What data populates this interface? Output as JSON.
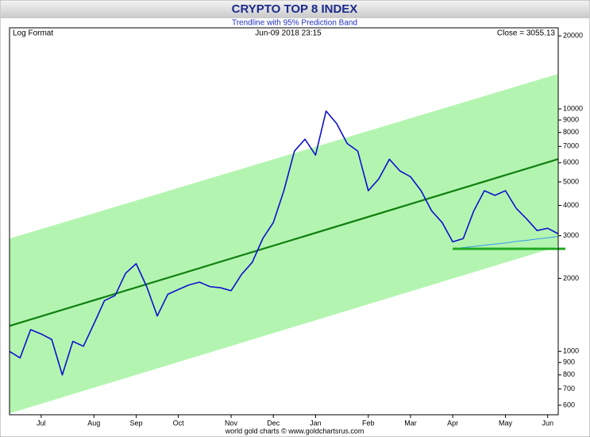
{
  "chart_data": {
    "type": "line",
    "title": "CRYPTO TOP 8 INDEX",
    "subtitle": "Trendline with 95% Prediction Band",
    "scale_note": "Log Format",
    "timestamp": "Jun-09  2018 23:15",
    "close_label": "Close = 3055.13",
    "footer": "world gold charts © www.goldchartsrus.com",
    "log_scale": true,
    "ylim": [
      548,
      21600
    ],
    "yticks": [
      600,
      700,
      800,
      900,
      1000,
      2000,
      3000,
      4000,
      5000,
      6000,
      7000,
      8000,
      9000,
      10000,
      20000
    ],
    "categories": [
      null,
      null,
      null,
      "Jul",
      null,
      null,
      null,
      null,
      "Aug",
      null,
      null,
      null,
      "Sep",
      null,
      null,
      null,
      "Oct",
      null,
      null,
      null,
      null,
      "Nov",
      null,
      null,
      null,
      "Dec",
      null,
      null,
      null,
      "Jan",
      null,
      null,
      null,
      null,
      "Feb",
      null,
      null,
      null,
      "Mar",
      null,
      null,
      null,
      "Apr",
      null,
      null,
      null,
      null,
      "May",
      null,
      null,
      null,
      "Jun",
      null
    ],
    "series": [
      {
        "name": "Crypto Top 8 Index",
        "color": "#1010d0",
        "width": 1.6,
        "values": [
          1000,
          940,
          1230,
          1180,
          1120,
          800,
          1100,
          1050,
          1300,
          1620,
          1700,
          2100,
          2300,
          1850,
          1400,
          1720,
          1800,
          1880,
          1930,
          1850,
          1830,
          1780,
          2080,
          2330,
          2920,
          3400,
          4600,
          6700,
          7500,
          6450,
          9800,
          8700,
          7200,
          6700,
          4600,
          5150,
          6200,
          5550,
          5250,
          4600,
          3800,
          3400,
          2830,
          2920,
          3800,
          4600,
          4400,
          4600,
          3900,
          3520,
          3150,
          3220,
          3055.13
        ]
      },
      {
        "name": "Support",
        "color": "#22aa22",
        "width": 3,
        "values": [
          null,
          null,
          null,
          null,
          null,
          null,
          null,
          null,
          null,
          null,
          null,
          null,
          null,
          null,
          null,
          null,
          null,
          null,
          null,
          null,
          null,
          null,
          null,
          null,
          null,
          null,
          null,
          null,
          null,
          null,
          null,
          null,
          null,
          null,
          null,
          null,
          null,
          null,
          null,
          null,
          null,
          null,
          2650,
          2650,
          2650,
          2650,
          2650,
          2650,
          2650,
          2650,
          2650,
          2650,
          2650
        ]
      },
      {
        "name": "Rising support",
        "color": "#3399ee",
        "width": 1,
        "values": [
          null,
          null,
          null,
          null,
          null,
          null,
          null,
          null,
          null,
          null,
          null,
          null,
          null,
          null,
          null,
          null,
          null,
          null,
          null,
          null,
          null,
          null,
          null,
          null,
          null,
          null,
          null,
          null,
          null,
          null,
          null,
          null,
          null,
          null,
          null,
          null,
          null,
          null,
          null,
          null,
          null,
          null,
          2650,
          2680,
          2710,
          2740,
          2770,
          2800,
          2840,
          2870,
          2910,
          2940,
          2980
        ]
      }
    ],
    "trend": {
      "color": "#0f7f0f",
      "values": [
        1274,
        6210
      ]
    },
    "band": {
      "color": "#b3f5b0",
      "upper": [
        2920,
        13940
      ],
      "lower": [
        555,
        2710
      ]
    }
  }
}
